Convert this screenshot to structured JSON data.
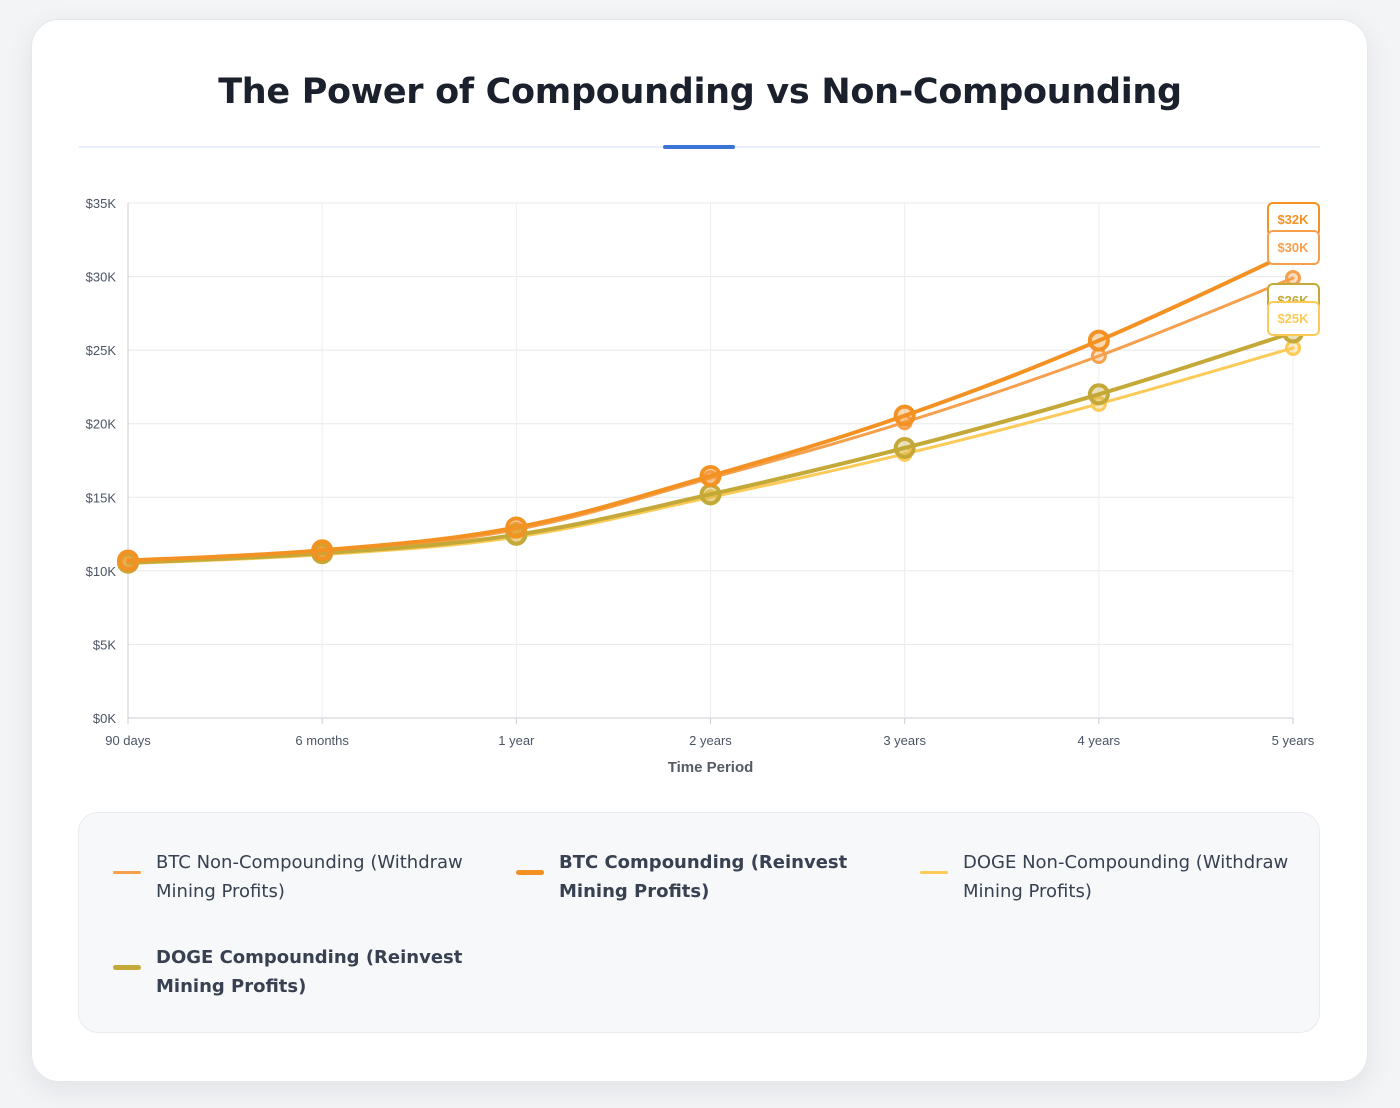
{
  "chart_data": {
    "type": "line",
    "title": "The Power of Compounding vs Non-Compounding",
    "xlabel": "Time Period",
    "ylabel": "",
    "ylim": [
      0,
      35000
    ],
    "yticks": [
      "$0K",
      "$5K",
      "$10K",
      "$15K",
      "$20K",
      "$25K",
      "$30K",
      "$35K"
    ],
    "categories": [
      "90 days",
      "6 months",
      "1 year",
      "2 years",
      "3 years",
      "4 years",
      "5 years"
    ],
    "grid": true,
    "legend_position": "bottom",
    "series": [
      {
        "name": "BTC Non-Compounding (Withdraw Mining Profits)",
        "color": "#f6a04d",
        "values": [
          10650,
          11300,
          12800,
          16300,
          20100,
          24600,
          29900
        ],
        "end_label": "$30K",
        "emphasis": false
      },
      {
        "name": "BTC Compounding (Reinvest Mining Profits)",
        "color": "#f39223",
        "values": [
          10700,
          11400,
          12950,
          16450,
          20550,
          25650,
          31700
        ],
        "end_label": "$32K",
        "emphasis": true
      },
      {
        "name": "DOGE Non-Compounding (Withdraw Mining Profits)",
        "color": "#fcca57",
        "values": [
          10500,
          11100,
          12300,
          15000,
          17950,
          21350,
          25150
        ],
        "end_label": "$25K",
        "emphasis": false
      },
      {
        "name": "DOGE Compounding (Reinvest Mining Profits)",
        "color": "#c4a838",
        "values": [
          10550,
          11200,
          12450,
          15200,
          18350,
          22000,
          26200
        ],
        "end_label": "$26K",
        "emphasis": true
      }
    ]
  }
}
